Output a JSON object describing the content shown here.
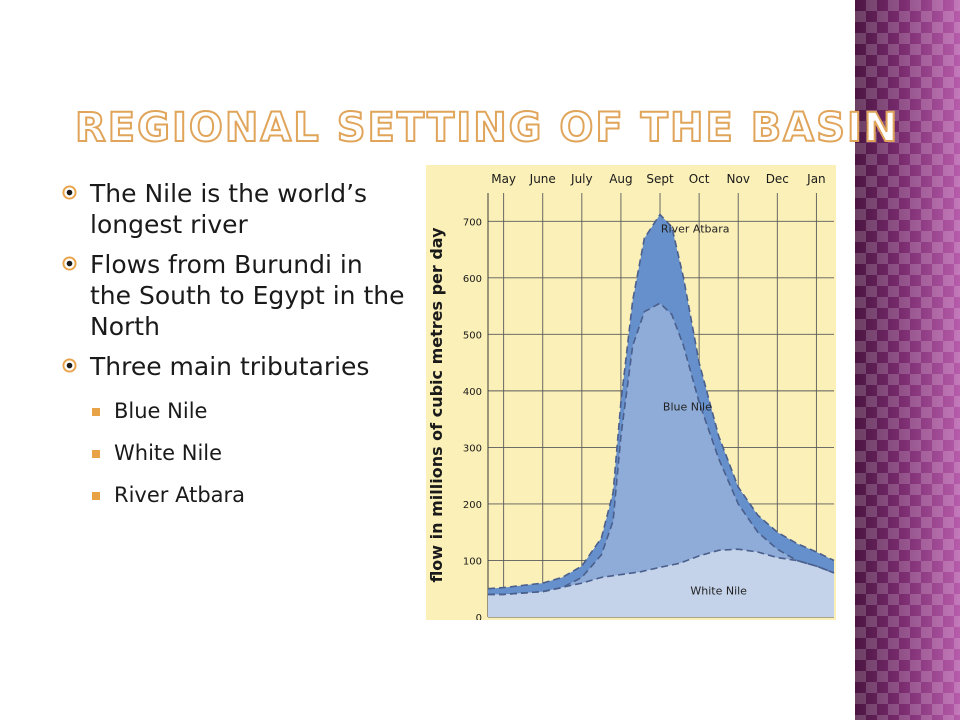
{
  "slide": {
    "title": "Regional setting of the basin",
    "bullets": [
      {
        "text": "The Nile is the world’s longest river"
      },
      {
        "text": "Flows from Burundi in the South to Egypt in the North"
      },
      {
        "text": "Three main tributaries",
        "sub": [
          "Blue Nile",
          "White Nile",
          "River Atbara"
        ]
      }
    ],
    "colors": {
      "title_outline": "#e0a55a",
      "sub_bullet": "#e8a248",
      "side_strip": "#8e3a82",
      "chart_background": "#fbf0b8"
    },
    "icons": {
      "level1_bullet": "circled-target-icon",
      "level2_bullet": "square-icon"
    }
  },
  "chart_data": {
    "type": "area",
    "categories": [
      "May",
      "June",
      "July",
      "Aug",
      "Sept",
      "Oct",
      "Nov",
      "Dec",
      "Jan"
    ],
    "ylabel": "flow in millions of cubic metres per day",
    "ylim": [
      0,
      750
    ],
    "yticks": [
      0,
      100,
      200,
      300,
      400,
      500,
      600,
      700
    ],
    "grid": true,
    "xlim": [
      4.6,
      13.45
    ],
    "series": [
      {
        "name": "White Nile",
        "color": "#c4d3ea",
        "x": [
          4.6,
          5.0,
          6.0,
          7.0,
          7.5,
          8.0,
          8.5,
          9.0,
          9.5,
          10.0,
          10.5,
          11.0,
          11.5,
          12.0,
          12.5,
          13.0,
          13.45
        ],
        "y": [
          40,
          40,
          45,
          60,
          70,
          75,
          80,
          88,
          95,
          108,
          118,
          120,
          115,
          105,
          100,
          90,
          78
        ]
      },
      {
        "name": "Blue Nile",
        "color": "#8facd8",
        "x": [
          4.6,
          5.0,
          6.0,
          6.5,
          7.0,
          7.5,
          7.8,
          8.0,
          8.3,
          8.6,
          9.0,
          9.3,
          9.6,
          10.0,
          10.5,
          11.0,
          11.5,
          12.0,
          12.5,
          13.0,
          13.45
        ],
        "y": [
          40,
          40,
          45,
          52,
          70,
          110,
          170,
          320,
          480,
          540,
          555,
          535,
          480,
          380,
          280,
          200,
          150,
          120,
          100,
          90,
          78
        ]
      },
      {
        "name": "River Atbara",
        "color": "#6690cc",
        "x": [
          4.6,
          5.0,
          6.0,
          6.5,
          7.0,
          7.5,
          7.8,
          8.0,
          8.3,
          8.6,
          9.0,
          9.3,
          9.6,
          10.0,
          10.5,
          11.0,
          11.5,
          12.0,
          12.5,
          13.0,
          13.45
        ],
        "y": [
          50,
          52,
          60,
          70,
          90,
          140,
          220,
          380,
          560,
          670,
          712,
          690,
          600,
          450,
          320,
          230,
          180,
          150,
          130,
          115,
          100
        ]
      }
    ]
  }
}
